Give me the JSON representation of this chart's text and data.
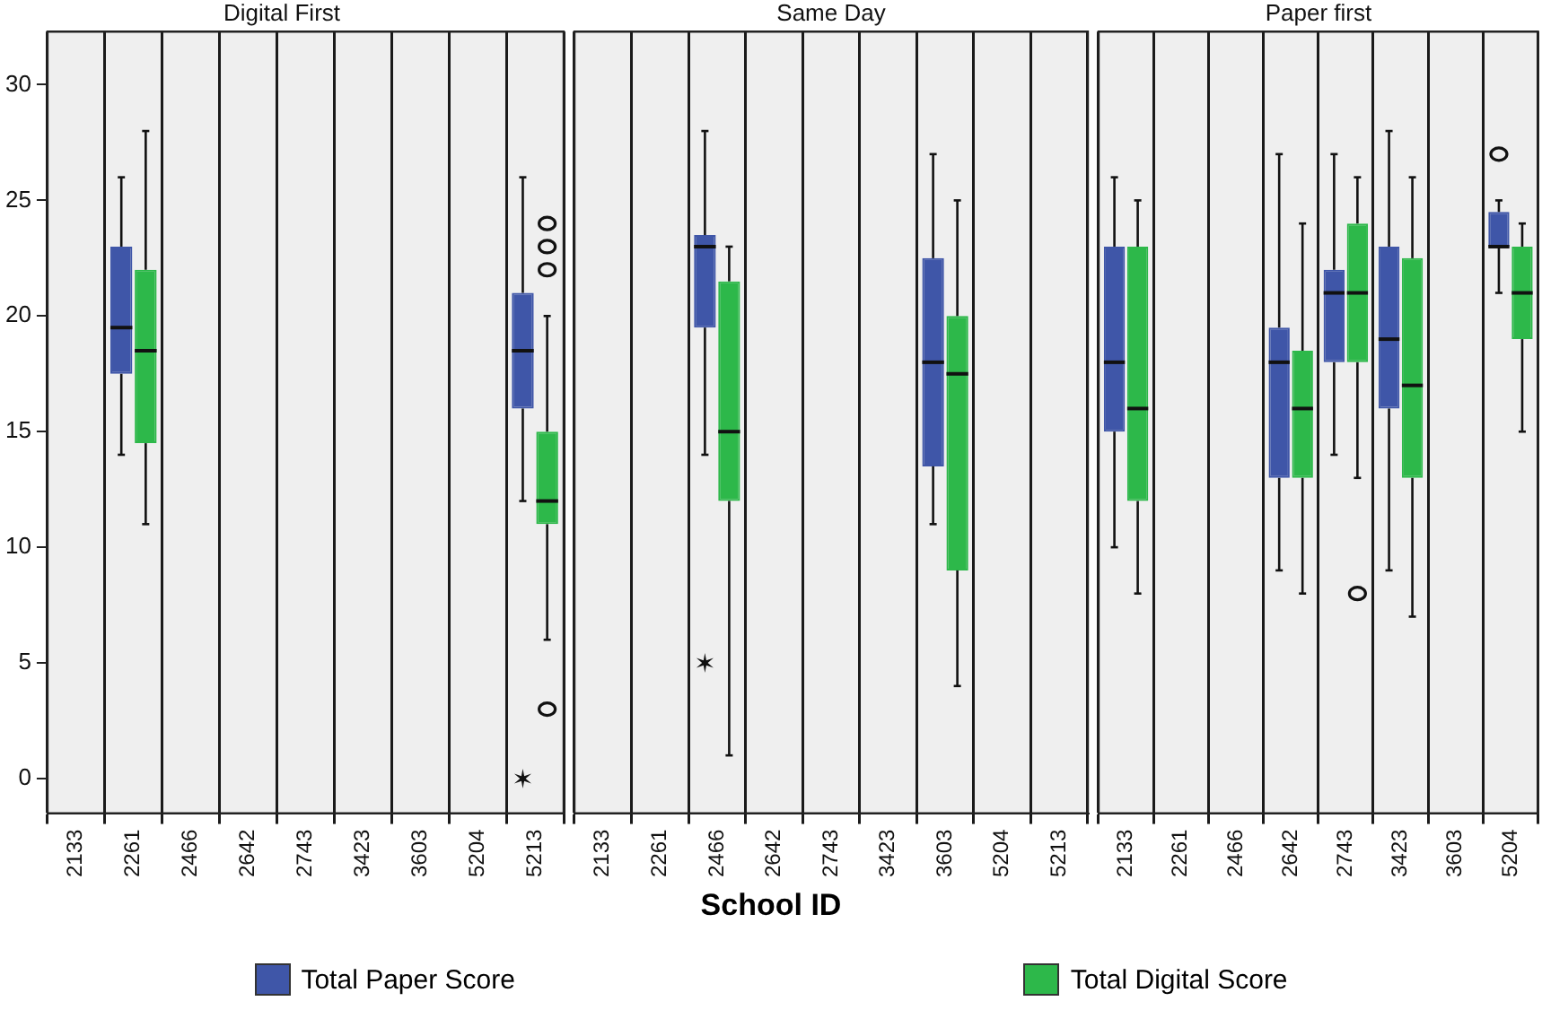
{
  "chart_data": [
    {
      "type": "box",
      "title": "Digital First",
      "categories": [
        "2133",
        "2261",
        "2466",
        "2642",
        "2743",
        "3423",
        "3603",
        "5204",
        "5213"
      ],
      "ylim": [
        -1.5,
        32.3
      ],
      "yticks": [
        0,
        5,
        10,
        15,
        20,
        25,
        30
      ],
      "grid": "x",
      "series": [
        {
          "color": "#3f56a8",
          "boxes": [
            null,
            {
              "low": 14,
              "q1": 17.5,
              "median": 19.5,
              "q3": 23,
              "high": 26
            },
            null,
            null,
            null,
            null,
            null,
            null,
            {
              "low": 12,
              "q1": 16,
              "median": 18.5,
              "q3": 21,
              "high": 26,
              "outliers": [
                0
              ]
            }
          ]
        },
        {
          "color": "#2db84a",
          "boxes": [
            null,
            {
              "low": 11,
              "q1": 14.5,
              "median": 18.5,
              "q3": 22,
              "high": 28
            },
            null,
            null,
            null,
            null,
            null,
            null,
            {
              "low": 6,
              "q1": 11,
              "median": 12,
              "q3": 15,
              "high": 20,
              "outliers": [
                3,
                22,
                23,
                24
              ]
            }
          ]
        }
      ]
    },
    {
      "type": "box",
      "title": "Same Day",
      "xlabel": "School ID",
      "legend": "bottom",
      "categories": [
        "2133",
        "2261",
        "2466",
        "2642",
        "2743",
        "3423",
        "3603",
        "5204",
        "5213"
      ],
      "ylim": [
        -1.5,
        32.3
      ],
      "yticks": [
        0,
        5,
        10,
        15,
        20,
        25,
        30
      ],
      "grid": "x",
      "tick_labels": "x",
      "series": [
        {
          "name": "Total Paper Score",
          "color": "#3f56a8",
          "boxes": [
            null,
            null,
            {
              "low": 14,
              "q1": 19.5,
              "median": 23,
              "q3": 23.5,
              "high": 28,
              "outliers": [
                5
              ]
            },
            null,
            null,
            null,
            {
              "low": 11,
              "q1": 13.5,
              "median": 18,
              "q3": 22.5,
              "high": 27
            },
            null,
            null
          ]
        },
        {
          "name": "Total Digital Score",
          "color": "#2db84a",
          "boxes": [
            null,
            null,
            {
              "low": 1,
              "q1": 12,
              "median": 15,
              "q3": 21.5,
              "high": 23
            },
            null,
            null,
            null,
            {
              "low": 4,
              "q1": 9,
              "median": 17.5,
              "q3": 20,
              "high": 25
            },
            null,
            null
          ]
        }
      ]
    },
    {
      "type": "box",
      "title": "Paper first",
      "categories": [
        "2133",
        "2261",
        "2466",
        "2642",
        "2743",
        "3423",
        "3603",
        "5204"
      ],
      "ylim": [
        -1.5,
        32.3
      ],
      "yticks": [
        0,
        5,
        10,
        15,
        20,
        25,
        30
      ],
      "grid": "x",
      "tick_labels": "x",
      "series": [
        {
          "color": "#3f56a8",
          "boxes": [
            {
              "low": 10,
              "q1": 15,
              "median": 18,
              "q3": 23,
              "high": 26
            },
            null,
            null,
            {
              "low": 9,
              "q1": 13,
              "median": 18,
              "q3": 19.5,
              "high": 27
            },
            {
              "low": 14,
              "q1": 18,
              "median": 21,
              "q3": 22,
              "high": 27
            },
            {
              "low": 9,
              "q1": 16,
              "median": 19,
              "q3": 23,
              "high": 28
            },
            null,
            {
              "low": 21,
              "q1": 23,
              "median": 23,
              "q3": 24.5,
              "high": 25,
              "outliers": [
                27
              ]
            }
          ]
        },
        {
          "color": "#2db84a",
          "boxes": [
            {
              "low": 8,
              "q1": 12,
              "median": 16,
              "q3": 23,
              "high": 25
            },
            null,
            null,
            {
              "low": 8,
              "q1": 13,
              "median": 16,
              "q3": 18.5,
              "high": 24
            },
            {
              "low": 13,
              "q1": 18,
              "median": 21,
              "q3": 24,
              "high": 26,
              "outliers": [
                8
              ]
            },
            {
              "low": 7,
              "q1": 13,
              "median": 17,
              "q3": 22.5,
              "high": 26
            },
            null,
            {
              "low": 15,
              "q1": 19,
              "median": 21,
              "q3": 23,
              "high": 24
            }
          ]
        }
      ]
    }
  ]
}
